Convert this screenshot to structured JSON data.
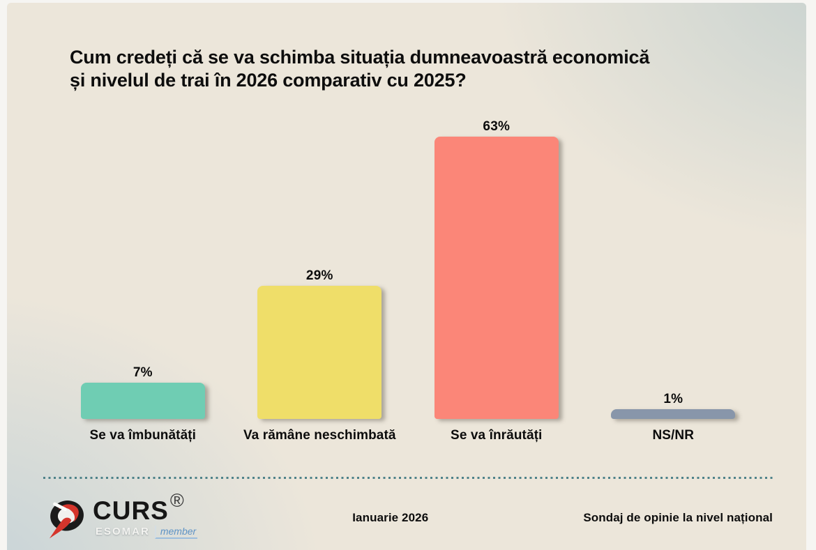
{
  "title": {
    "line1": "Cum credeți că se va schimba situația dumneavoastră economică",
    "line2": "și nivelul de trai în 2026 comparativ cu 2025?"
  },
  "chart_data": {
    "type": "bar",
    "title": "Cum credeți că se va schimba situația dumneavoastră economică și nivelul de trai în 2026 comparativ cu 2025?",
    "categories": [
      "Se va îmbunătăți",
      "Va rămâne neschimbată",
      "Se va înrăutăți",
      "NS/NR"
    ],
    "values": [
      7,
      29,
      63,
      1
    ],
    "value_labels": [
      "7%",
      "29%",
      "63%",
      "1%"
    ],
    "bar_colors": [
      "#6fcdb3",
      "#efde69",
      "#fb8678",
      "#8896aa"
    ],
    "xlabel": "",
    "ylabel": "",
    "ylim": [
      0,
      70
    ],
    "grid": false,
    "legend": false,
    "data_labels": true
  },
  "footer": {
    "logo": {
      "brand": "CURS",
      "registered": "®",
      "esomar": "ESOMAR",
      "member": "member"
    },
    "date": "Ianuarie 2026",
    "note": "Sondaj de opinie la nivel național"
  },
  "colors": {
    "divider": "#4e8289",
    "background_beige": "#ece6da",
    "background_sage": "#c6d1cf",
    "background_bluegray": "#c4d2d7",
    "logo_red": "#d5352c",
    "logo_black": "#1b1b1b"
  }
}
